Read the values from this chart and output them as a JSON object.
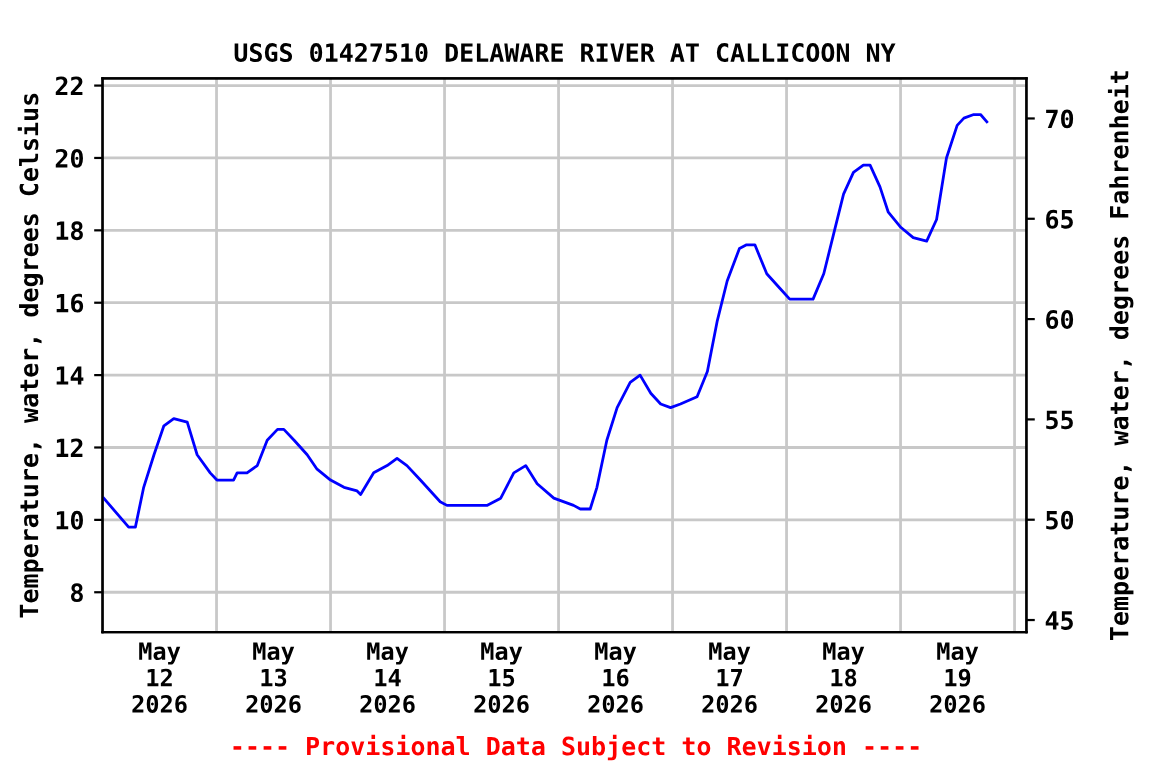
{
  "chart_data": {
    "type": "line",
    "title": "USGS 01427510 DELAWARE RIVER AT CALLICOON NY",
    "ylabel": "Temperature, water, degrees Celsius",
    "y2label": "Temperature, water, degrees Fahrenheit",
    "annotations": [
      "---- Provisional Data Subject to Revision ----"
    ],
    "x": [
      "2026-05-12T00:15",
      "2026-05-12T05:30",
      "2026-05-12T06:55",
      "2026-05-12T08:40",
      "2026-05-12T10:50",
      "2026-05-12T12:55",
      "2026-05-12T15:00",
      "2026-05-12T17:50",
      "2026-05-12T19:55",
      "2026-05-12T22:40",
      "2026-05-13T00:05",
      "2026-05-13T03:35",
      "2026-05-13T04:20",
      "2026-05-13T06:25",
      "2026-05-13T08:35",
      "2026-05-13T10:40",
      "2026-05-13T12:50",
      "2026-05-13T14:10",
      "2026-05-13T16:20",
      "2026-05-13T19:05",
      "2026-05-13T21:10",
      "2026-05-14T00:00",
      "2026-05-14T02:50",
      "2026-05-14T05:35",
      "2026-05-14T06:20",
      "2026-05-14T09:05",
      "2026-05-14T11:55",
      "2026-05-14T14:00",
      "2026-05-14T16:05",
      "2026-05-14T18:55",
      "2026-05-14T23:05",
      "2026-05-15T00:30",
      "2026-05-15T08:55",
      "2026-05-15T11:50",
      "2026-05-15T14:35",
      "2026-05-15T17:05",
      "2026-05-15T19:30",
      "2026-05-15T23:00",
      "2026-05-16T03:10",
      "2026-05-16T04:35",
      "2026-05-16T06:40",
      "2026-05-16T08:05",
      "2026-05-16T10:10",
      "2026-05-16T12:20",
      "2026-05-16T15:05",
      "2026-05-16T17:10",
      "2026-05-16T19:25",
      "2026-05-16T21:30",
      "2026-05-16T23:35",
      "2026-05-17T01:40",
      "2026-05-17T05:10",
      "2026-05-17T07:20",
      "2026-05-17T09:25",
      "2026-05-17T11:30",
      "2026-05-17T14:05",
      "2026-05-17T15:35",
      "2026-05-17T17:20",
      "2026-05-17T19:50",
      "2026-05-17T22:35",
      "2026-05-18T00:40",
      "2026-05-18T05:35",
      "2026-05-18T07:50",
      "2026-05-18T09:55",
      "2026-05-18T12:00",
      "2026-05-18T14:05",
      "2026-05-18T16:10",
      "2026-05-18T17:35",
      "2026-05-18T19:40",
      "2026-05-18T21:25",
      "2026-05-18T23:55",
      "2026-05-19T02:40",
      "2026-05-19T05:30",
      "2026-05-19T07:35",
      "2026-05-19T09:40",
      "2026-05-19T11:55",
      "2026-05-19T13:20",
      "2026-05-19T15:25",
      "2026-05-19T16:50",
      "2026-05-19T18:10"
    ],
    "series": [
      {
        "color": "#0000ff",
        "values": [
          10.6,
          9.8,
          9.8,
          10.9,
          11.8,
          12.6,
          12.8,
          12.7,
          11.8,
          11.3,
          11.1,
          11.1,
          11.3,
          11.3,
          11.5,
          12.2,
          12.5,
          12.5,
          12.2,
          11.8,
          11.4,
          11.1,
          10.9,
          10.8,
          10.7,
          11.3,
          11.5,
          11.7,
          11.5,
          11.1,
          10.5,
          10.4,
          10.4,
          10.6,
          11.3,
          11.5,
          11.0,
          10.6,
          10.4,
          10.3,
          10.3,
          10.9,
          12.2,
          13.1,
          13.8,
          14.0,
          13.5,
          13.2,
          13.1,
          13.2,
          13.4,
          14.1,
          15.5,
          16.6,
          17.5,
          17.6,
          17.6,
          16.8,
          16.4,
          16.1,
          16.1,
          16.8,
          17.9,
          19.0,
          19.6,
          19.8,
          19.8,
          19.2,
          18.5,
          18.1,
          17.8,
          17.7,
          18.3,
          20.0,
          20.9,
          21.1,
          21.2,
          21.2,
          21.0
        ]
      }
    ],
    "xlim": [
      "2026-05-12T00:00",
      "2026-05-20T02:30"
    ],
    "xticks": [
      {
        "value": "2026-05-12T12:00",
        "label": "May\n12\n2026"
      },
      {
        "value": "2026-05-13T00:00",
        "label": null
      },
      {
        "value": "2026-05-13T12:00",
        "label": "May\n13\n2026"
      },
      {
        "value": "2026-05-14T00:00",
        "label": null
      },
      {
        "value": "2026-05-14T12:00",
        "label": "May\n14\n2026"
      },
      {
        "value": "2026-05-15T00:00",
        "label": null
      },
      {
        "value": "2026-05-15T12:00",
        "label": "May\n15\n2026"
      },
      {
        "value": "2026-05-16T00:00",
        "label": null
      },
      {
        "value": "2026-05-16T12:00",
        "label": "May\n16\n2026"
      },
      {
        "value": "2026-05-17T00:00",
        "label": null
      },
      {
        "value": "2026-05-17T12:00",
        "label": "May\n17\n2026"
      },
      {
        "value": "2026-05-18T00:00",
        "label": null
      },
      {
        "value": "2026-05-18T12:00",
        "label": "May\n18\n2026"
      },
      {
        "value": "2026-05-19T00:00",
        "label": null
      },
      {
        "value": "2026-05-19T12:00",
        "label": "May\n19\n2026"
      },
      {
        "value": "2026-05-20T00:00",
        "label": null
      }
    ],
    "ylim": [
      6.9,
      22.2
    ],
    "yticks": [
      8,
      10,
      12,
      14,
      16,
      18,
      20,
      22
    ],
    "y2lim": [
      44.4,
      72.0
    ],
    "y2ticks": [
      45,
      50,
      55,
      60,
      65,
      70
    ],
    "grid": true,
    "line_style": "solid",
    "marker": "none",
    "legend": false
  }
}
